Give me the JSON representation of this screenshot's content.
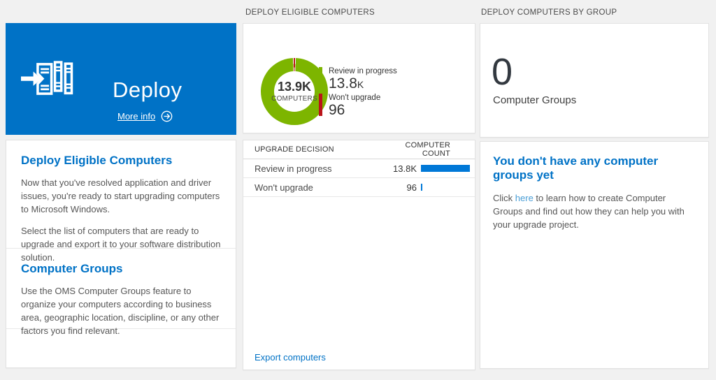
{
  "headers": {
    "eligible_computers": "DEPLOY ELIGIBLE COMPUTERS",
    "computers_by_group": "DEPLOY COMPUTERS BY GROUP"
  },
  "tile": {
    "title": "Deploy",
    "more_info_label": "More info"
  },
  "left_card": {
    "section1_heading": "Deploy Eligible Computers",
    "section1_p1": "Now that you've resolved application and driver issues, you're ready to start upgrading computers to Microsoft Windows.",
    "section1_p2": "Select the list of computers that are ready to upgrade and export it to your software distribution solution.",
    "section2_heading": "Computer Groups",
    "section2_p1": "Use the OMS Computer Groups feature to organize your computers according to business area, geographic location, discipline, or any other factors you find relevant."
  },
  "donut_card": {
    "center_value": "13.9K",
    "center_label": "COMPUTERS"
  },
  "table_card": {
    "col1_header": "UPGRADE DECISION",
    "col2_header": "COMPUTER COUNT",
    "export_label": "Export computers"
  },
  "groups_cards": {
    "count": "0",
    "count_label": "Computer Groups",
    "empty_heading": "You don't have any computer groups yet",
    "empty_pre": "Click ",
    "empty_link": "here",
    "empty_post": " to learn how to create Computer Groups and find out how they can help you with your upgrade project."
  },
  "colors": {
    "tile_blue": "#0072c6",
    "accent_blue": "#0072c6",
    "light_link_blue": "#4a9ed6",
    "bar_blue": "#0078d7",
    "donut_green": "#7db500",
    "donut_red": "#ba141a"
  },
  "chart_data": [
    {
      "type": "pie",
      "title": "DEPLOY ELIGIBLE COMPUTERS",
      "center_value": "13.9K",
      "center_label": "COMPUTERS",
      "legend_position": "right",
      "segments": [
        {
          "label": "Review in progress",
          "value": 13800,
          "display": "13.8",
          "suffix": "K",
          "color": "#7db500"
        },
        {
          "label": "Won't upgrade",
          "value": 96,
          "display": "96",
          "suffix": "",
          "color": "#ba141a"
        }
      ]
    },
    {
      "type": "table",
      "columns": [
        "UPGRADE DECISION",
        "COMPUTER COUNT"
      ],
      "bar_color": "#0078d7",
      "rows": [
        {
          "label": "Review in progress",
          "value": 13800,
          "display": "13.8K"
        },
        {
          "label": "Won't upgrade",
          "value": 96,
          "display": "96"
        }
      ]
    }
  ]
}
